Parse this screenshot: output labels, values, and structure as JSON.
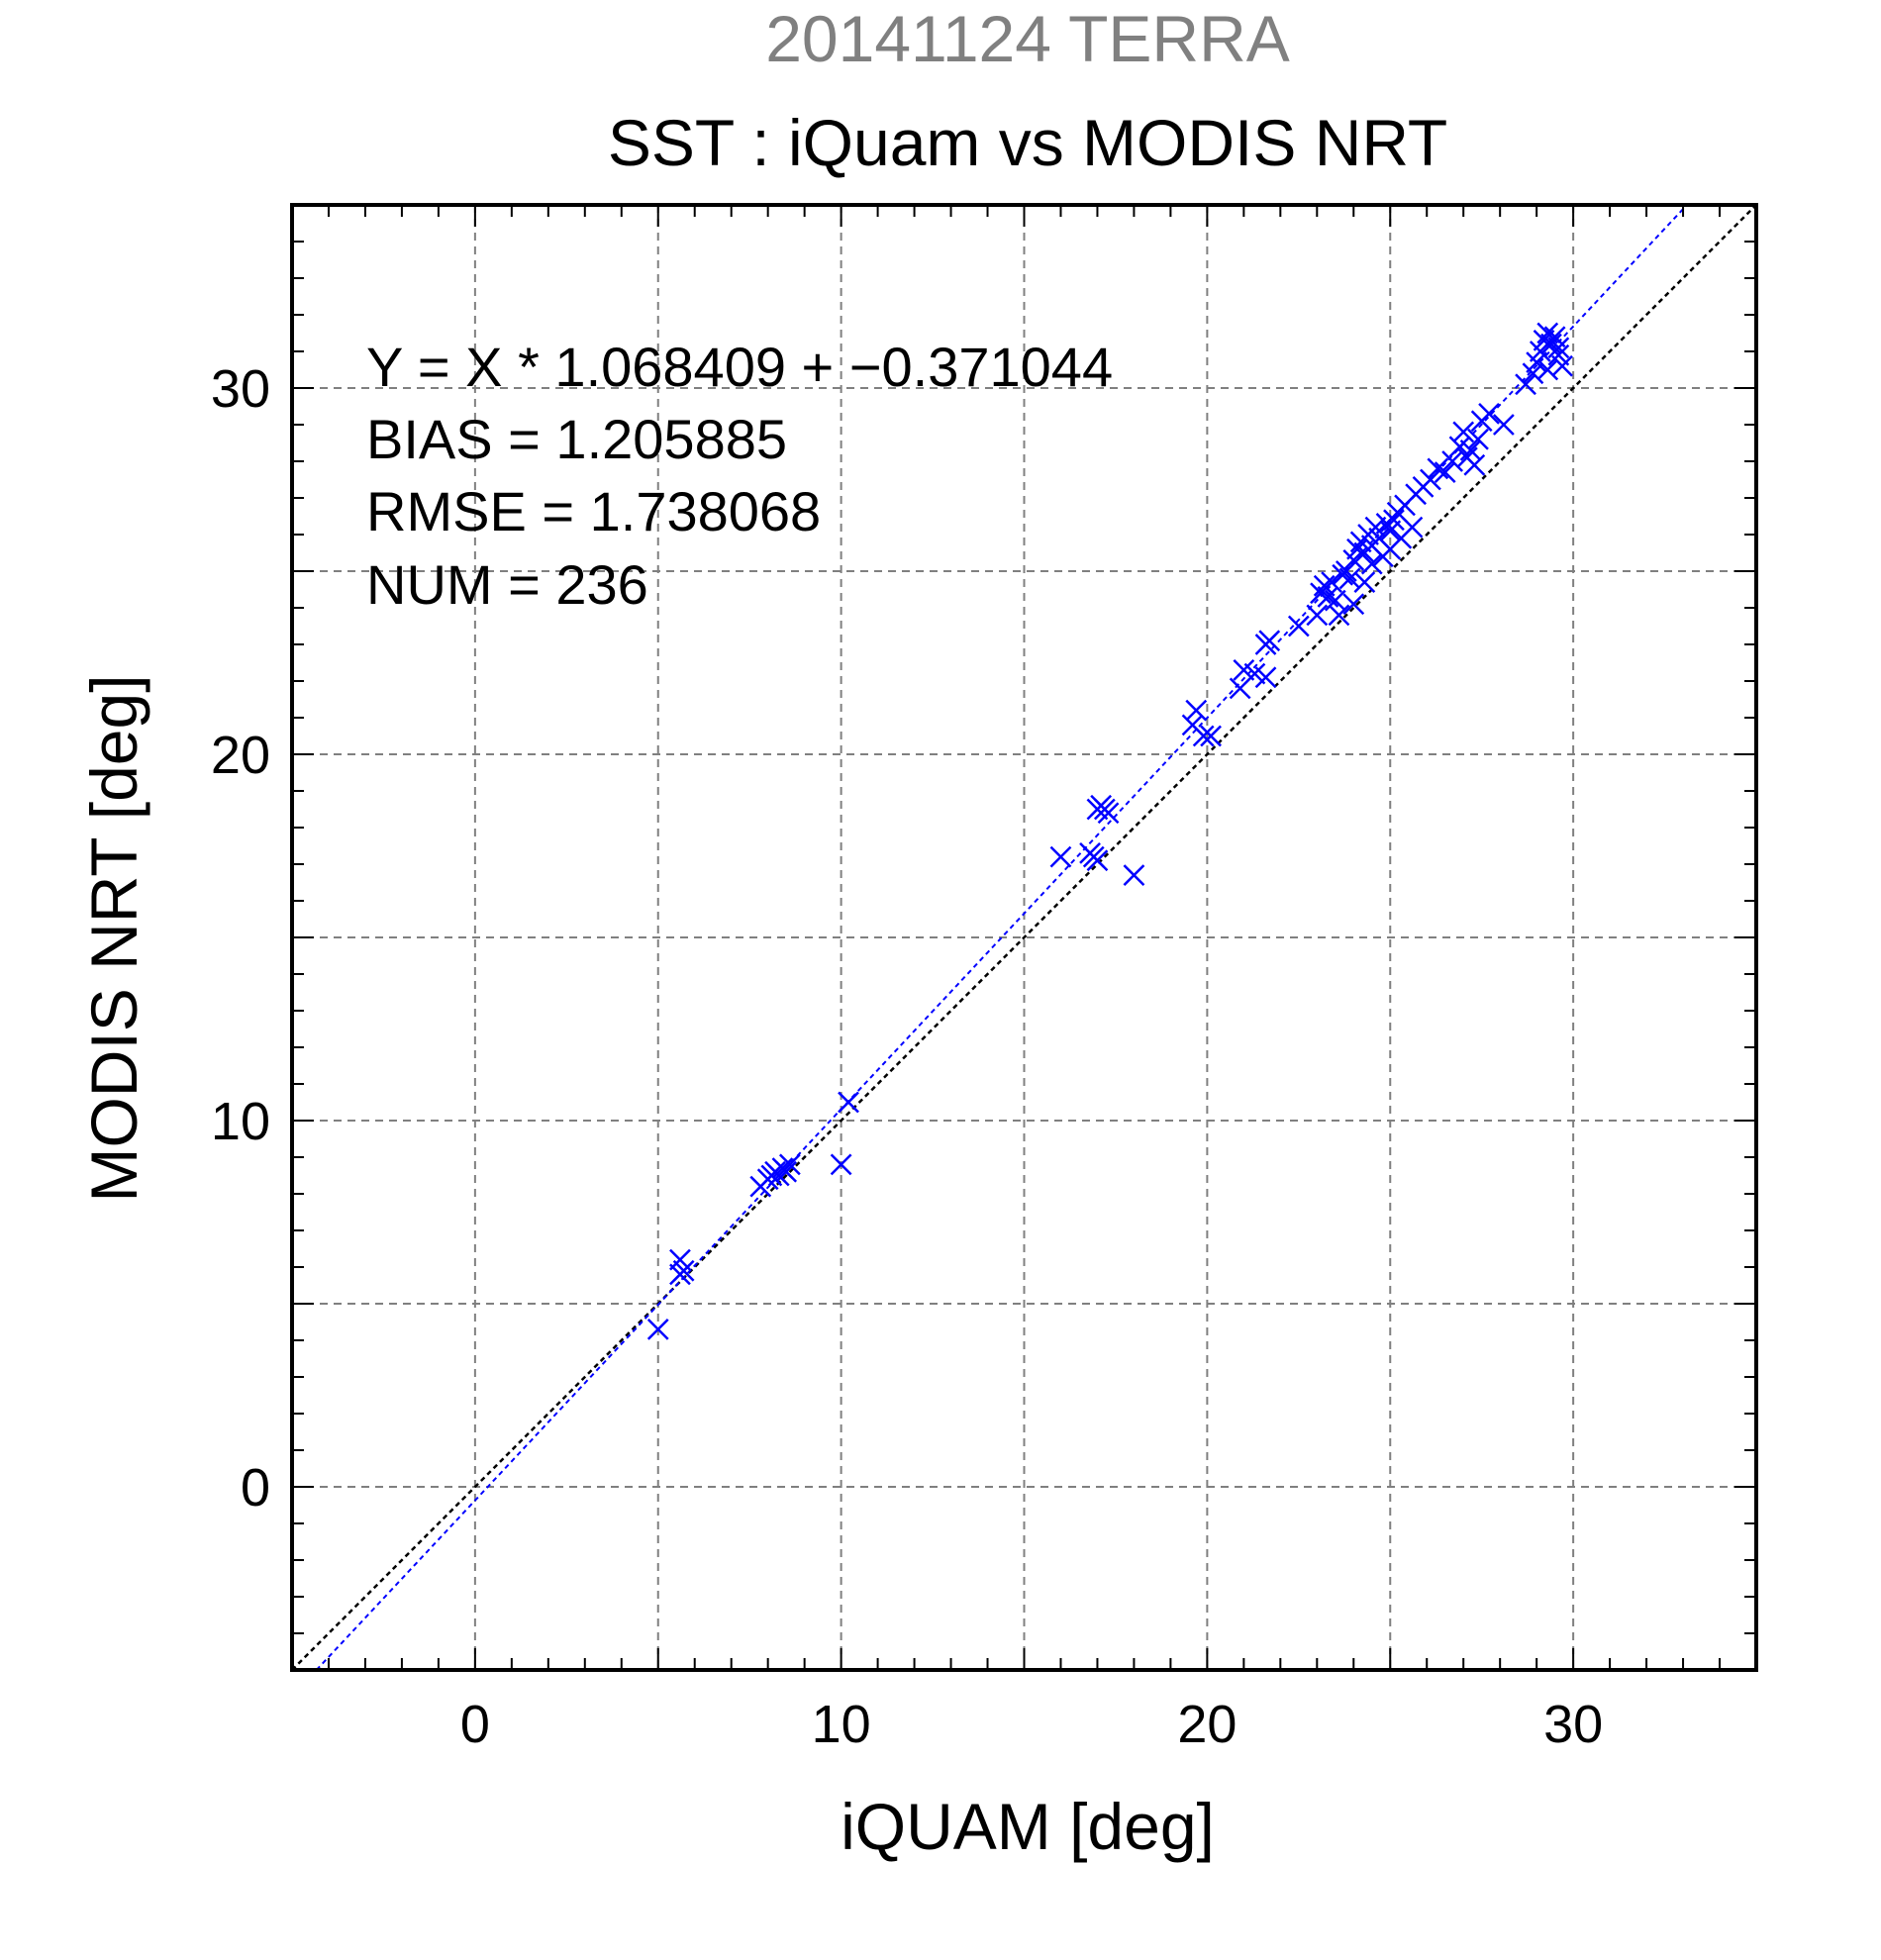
{
  "chart_data": {
    "type": "scatter",
    "supertitle": "20141124 TERRA",
    "title": "SST : iQuam vs MODIS NRT",
    "xlabel": "iQUAM [deg]",
    "ylabel": "MODIS NRT [deg]",
    "xlim": [
      -5,
      35
    ],
    "ylim": [
      -5,
      35
    ],
    "major_ticks": [
      0,
      10,
      20,
      30
    ],
    "minor_tick_step": 1,
    "grid_step": 5,
    "grid": true,
    "colors": {
      "title_gray": "#808080",
      "marker": "#0000ff",
      "fit_line": "#0000ff",
      "identity_line": "#000000",
      "grid": "#808080",
      "text": "#000000"
    },
    "stats_text": [
      "Y = X * 1.068409 + −0.371044",
      "BIAS = 1.205885",
      "RMSE = 1.738068",
      "NUM = 236"
    ],
    "fit": {
      "slope": 1.068409,
      "intercept": -0.371044
    },
    "identity": {
      "slope": 1,
      "intercept": 0
    },
    "marker": "x",
    "points": [
      [
        5.0,
        4.3
      ],
      [
        5.6,
        5.8
      ],
      [
        5.6,
        6.2
      ],
      [
        5.7,
        5.9
      ],
      [
        7.8,
        8.2
      ],
      [
        8.0,
        8.4
      ],
      [
        8.1,
        8.5
      ],
      [
        8.2,
        8.6
      ],
      [
        8.4,
        8.7
      ],
      [
        8.5,
        8.6
      ],
      [
        8.6,
        8.8
      ],
      [
        8.3,
        8.5
      ],
      [
        10.0,
        8.8
      ],
      [
        10.2,
        10.5
      ],
      [
        16.0,
        17.2
      ],
      [
        16.8,
        17.3
      ],
      [
        16.9,
        17.2
      ],
      [
        17.0,
        17.1
      ],
      [
        17.0,
        18.5
      ],
      [
        17.1,
        18.6
      ],
      [
        17.2,
        18.5
      ],
      [
        17.3,
        18.4
      ],
      [
        18.0,
        16.7
      ],
      [
        19.6,
        20.8
      ],
      [
        19.7,
        21.2
      ],
      [
        19.9,
        20.5
      ],
      [
        20.1,
        20.5
      ],
      [
        20.9,
        21.8
      ],
      [
        21.0,
        22.3
      ],
      [
        21.3,
        22.2
      ],
      [
        21.6,
        22.1
      ],
      [
        21.6,
        23.0
      ],
      [
        21.7,
        23.1
      ],
      [
        22.5,
        23.5
      ],
      [
        23.0,
        23.8
      ],
      [
        23.1,
        24.4
      ],
      [
        23.2,
        24.6
      ],
      [
        23.3,
        24.3
      ],
      [
        23.4,
        24.7
      ],
      [
        23.5,
        24.2
      ],
      [
        23.6,
        23.8
      ],
      [
        23.7,
        24.9
      ],
      [
        23.8,
        25.0
      ],
      [
        23.9,
        24.8
      ],
      [
        24.0,
        25.3
      ],
      [
        24.0,
        24.1
      ],
      [
        24.1,
        25.6
      ],
      [
        24.2,
        25.8
      ],
      [
        24.3,
        25.5
      ],
      [
        24.3,
        24.7
      ],
      [
        24.4,
        26.0
      ],
      [
        24.5,
        25.7
      ],
      [
        24.5,
        25.2
      ],
      [
        24.6,
        26.2
      ],
      [
        24.7,
        25.9
      ],
      [
        24.8,
        25.4
      ],
      [
        24.9,
        26.3
      ],
      [
        25.0,
        26.1
      ],
      [
        25.0,
        25.6
      ],
      [
        25.1,
        26.4
      ],
      [
        25.2,
        26.6
      ],
      [
        25.3,
        25.9
      ],
      [
        25.4,
        26.8
      ],
      [
        25.6,
        26.2
      ],
      [
        25.7,
        27.1
      ],
      [
        25.9,
        27.3
      ],
      [
        26.1,
        27.5
      ],
      [
        26.3,
        27.8
      ],
      [
        26.5,
        27.7
      ],
      [
        26.7,
        28.0
      ],
      [
        26.9,
        28.4
      ],
      [
        27.0,
        28.8
      ],
      [
        27.1,
        28.1
      ],
      [
        27.2,
        28.3
      ],
      [
        27.3,
        27.9
      ],
      [
        27.4,
        28.6
      ],
      [
        27.5,
        29.1
      ],
      [
        27.7,
        29.3
      ],
      [
        28.1,
        29.0
      ],
      [
        28.7,
        30.1
      ],
      [
        28.9,
        30.4
      ],
      [
        29.0,
        30.7
      ],
      [
        29.1,
        31.0
      ],
      [
        29.2,
        31.3
      ],
      [
        29.3,
        31.5
      ],
      [
        29.3,
        30.5
      ],
      [
        29.4,
        31.2
      ],
      [
        29.5,
        31.4
      ],
      [
        29.6,
        30.9
      ],
      [
        29.6,
        31.1
      ],
      [
        29.7,
        30.6
      ]
    ]
  }
}
